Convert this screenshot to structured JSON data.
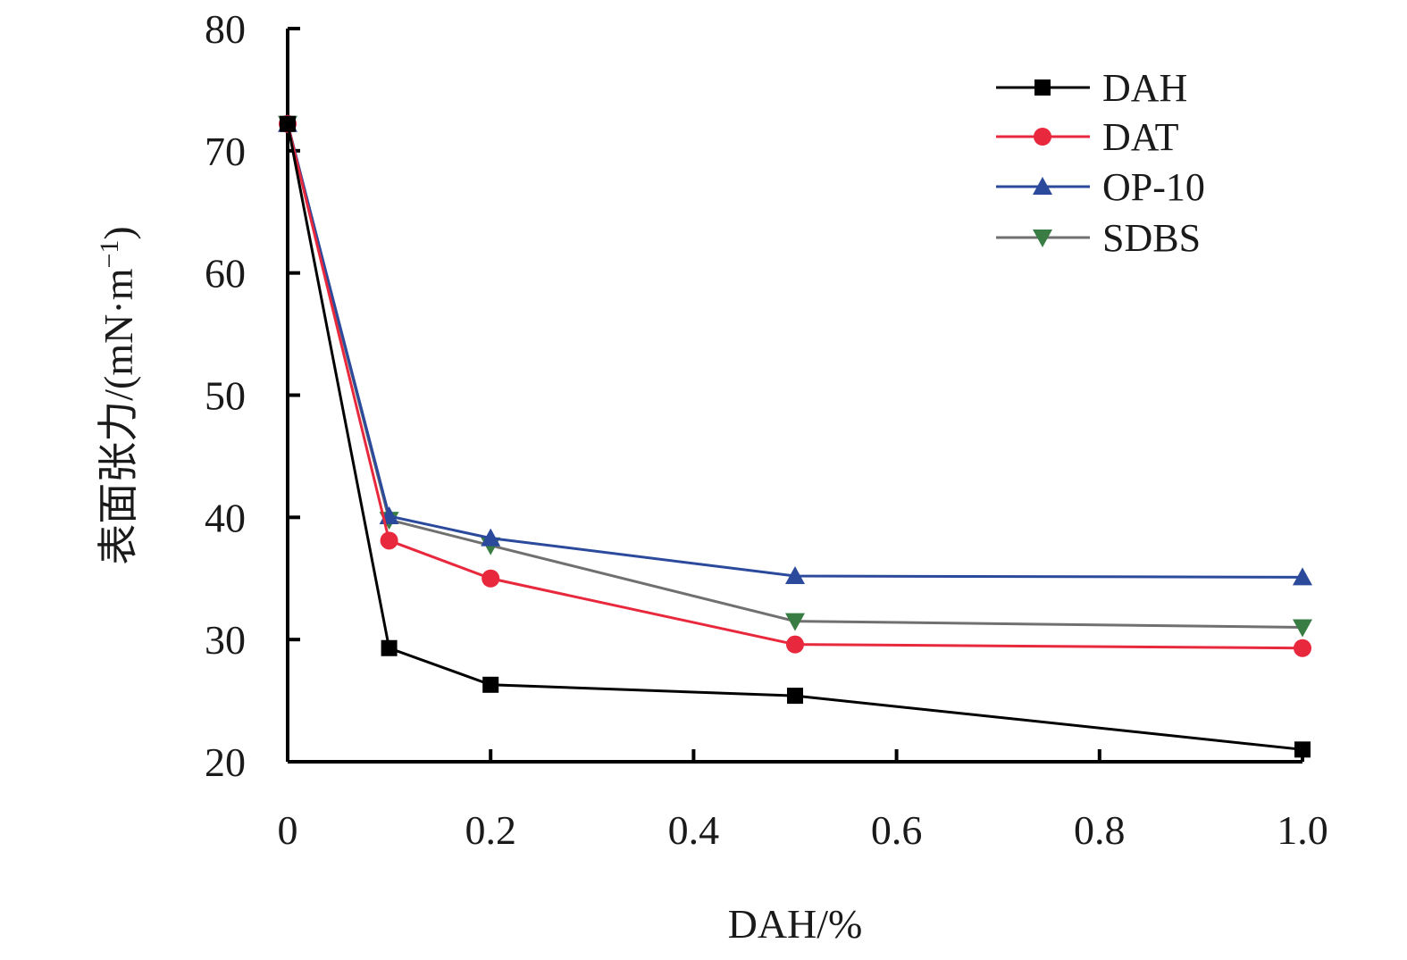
{
  "chart_data": {
    "type": "line",
    "title": "",
    "xlabel": "DAH/%",
    "ylabel": "表面张力/(mN·m",
    "ylabel_sup": "−1",
    "ylabel_close": ")",
    "xlim": [
      0,
      1.0
    ],
    "ylim": [
      20,
      80
    ],
    "x_ticks": [
      0,
      0.2,
      0.4,
      0.6,
      0.8,
      1.0
    ],
    "x_tick_labels": [
      "0",
      "0.2",
      "0.4",
      "0.6",
      "0.8",
      "1.0"
    ],
    "y_ticks": [
      20,
      30,
      40,
      50,
      60,
      70,
      80
    ],
    "y_tick_labels": [
      "20",
      "30",
      "40",
      "50",
      "60",
      "70",
      "80"
    ],
    "grid": false,
    "legend_position": "top-right",
    "x": [
      0,
      0.1,
      0.2,
      0.5,
      1.0
    ],
    "series": [
      {
        "name": "DAH",
        "marker": "square",
        "color": "#000000",
        "values": [
          72.2,
          29.3,
          26.3,
          25.4,
          21.0
        ]
      },
      {
        "name": "DAT",
        "marker": "circle",
        "color": "#e8283c",
        "values": [
          72.2,
          38.1,
          35.0,
          29.6,
          29.3
        ]
      },
      {
        "name": "OP-10",
        "marker": "triangle-up",
        "color": "#2b4a9c",
        "values": [
          72.2,
          40.1,
          38.3,
          35.2,
          35.1
        ]
      },
      {
        "name": "SDBS",
        "marker": "triangle-down",
        "color": "#3a7d44",
        "values": [
          72.2,
          39.8,
          37.7,
          31.5,
          31.0
        ]
      }
    ],
    "line_colors": {
      "DAH": "#000000",
      "DAT": "#e8283c",
      "OP-10": "#2b4a9c",
      "SDBS": "#707070"
    }
  }
}
